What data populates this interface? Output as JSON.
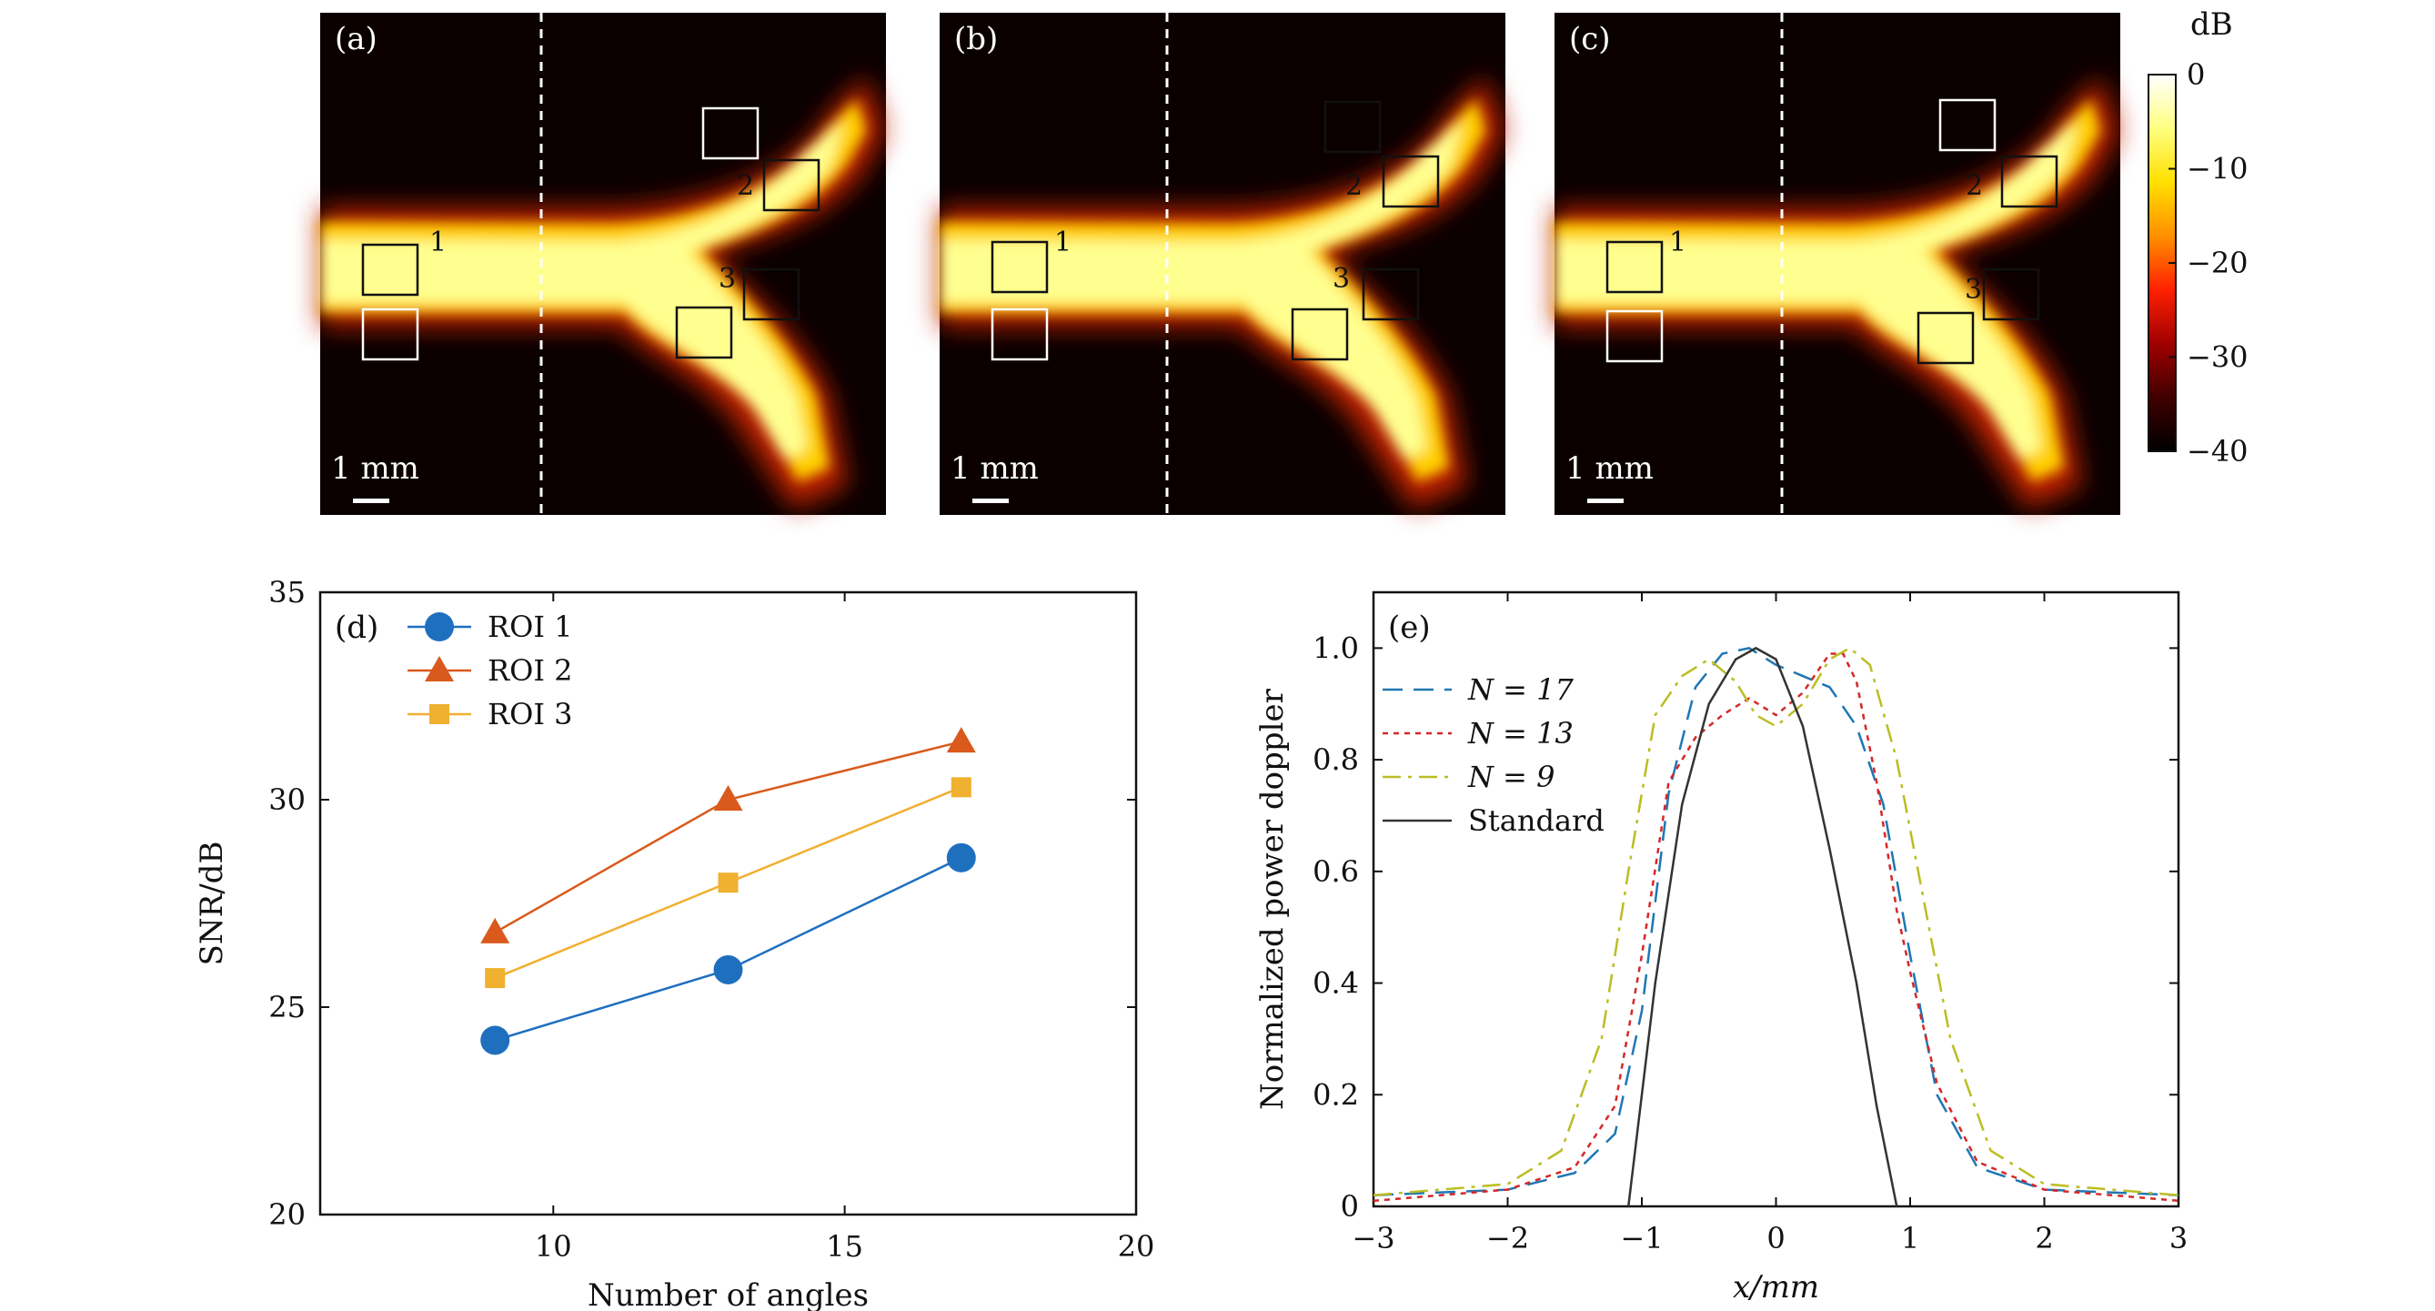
{
  "images": {
    "panels": [
      {
        "label": "(a)",
        "scale_label": "1 mm"
      },
      {
        "label": "(b)",
        "scale_label": "1 mm"
      },
      {
        "label": "(c)",
        "scale_label": "1 mm"
      }
    ],
    "roi_labels": [
      "1",
      "2",
      "3"
    ],
    "colorbar": {
      "unit": "dB",
      "tick_labels": [
        "0",
        "−10",
        "−20",
        "−30",
        "−40"
      ],
      "colors": [
        "#ffffff",
        "#ffff80",
        "#ffe000",
        "#ff9000",
        "#ff2000",
        "#a00000",
        "#400000",
        "#000000"
      ]
    }
  },
  "chart_data": [
    {
      "panel": "(d)",
      "type": "line",
      "xlabel": "Number of angles",
      "ylabel": "SNR/dB",
      "xlim": [
        6,
        20
      ],
      "ylim": [
        20,
        35
      ],
      "xticks": [
        10,
        15,
        20
      ],
      "xtick_labels": [
        "10",
        "15",
        "20"
      ],
      "yticks": [
        20,
        25,
        30,
        35
      ],
      "ytick_labels": [
        "20",
        "25",
        "30",
        "35"
      ],
      "legend_position": "top-left",
      "x": [
        9,
        13,
        17
      ],
      "series": [
        {
          "name": "ROI 1",
          "marker": "circle",
          "color": "#1f6fbf",
          "values": [
            24.2,
            25.9,
            28.6
          ]
        },
        {
          "name": "ROI 2",
          "marker": "triangle",
          "color": "#d95a1c",
          "values": [
            26.8,
            30.0,
            31.4
          ]
        },
        {
          "name": "ROI 3",
          "marker": "square",
          "color": "#f0b030",
          "values": [
            25.7,
            28.0,
            30.3
          ]
        }
      ]
    },
    {
      "panel": "(e)",
      "type": "line",
      "xlabel": "x/mm",
      "ylabel": "Normalized power doppler",
      "xlim": [
        -3,
        3
      ],
      "ylim": [
        0,
        1.1
      ],
      "xticks": [
        -3,
        -2,
        -1,
        0,
        1,
        2,
        3
      ],
      "xtick_labels": [
        "−3",
        "−2",
        "−1",
        "0",
        "1",
        "2",
        "3"
      ],
      "yticks": [
        0,
        0.2,
        0.4,
        0.6,
        0.8,
        1.0
      ],
      "ytick_labels": [
        "0",
        "0.2",
        "0.4",
        "0.6",
        "0.8",
        "1.0"
      ],
      "legend_position": "top-left",
      "series": [
        {
          "name": "N = 17",
          "style": "dashed",
          "color": "#1f77b4",
          "x": [
            -3,
            -2,
            -1.5,
            -1.2,
            -1.0,
            -0.8,
            -0.6,
            -0.4,
            -0.2,
            0,
            0.2,
            0.4,
            0.6,
            0.8,
            1.0,
            1.2,
            1.5,
            2,
            3
          ],
          "y": [
            0.02,
            0.03,
            0.06,
            0.13,
            0.35,
            0.74,
            0.93,
            0.99,
            1.0,
            0.97,
            0.95,
            0.93,
            0.86,
            0.72,
            0.45,
            0.2,
            0.07,
            0.03,
            0.02
          ]
        },
        {
          "name": "N = 13",
          "style": "dotted",
          "color": "#d62728",
          "x": [
            -3,
            -2,
            -1.5,
            -1.2,
            -1.0,
            -0.8,
            -0.6,
            -0.4,
            -0.2,
            0,
            0.2,
            0.4,
            0.5,
            0.6,
            0.75,
            0.9,
            1.0,
            1.2,
            1.5,
            2,
            3
          ],
          "y": [
            0.01,
            0.03,
            0.07,
            0.18,
            0.45,
            0.76,
            0.84,
            0.88,
            0.91,
            0.88,
            0.92,
            0.99,
            0.99,
            0.94,
            0.76,
            0.53,
            0.42,
            0.22,
            0.08,
            0.03,
            0.01
          ]
        },
        {
          "name": "N = 9",
          "style": "dashdot",
          "color": "#bcbd22",
          "x": [
            -3,
            -2,
            -1.6,
            -1.3,
            -1.1,
            -0.9,
            -0.7,
            -0.5,
            -0.3,
            -0.15,
            0,
            0.2,
            0.4,
            0.55,
            0.7,
            0.9,
            1.1,
            1.3,
            1.6,
            2,
            3
          ],
          "y": [
            0.02,
            0.04,
            0.1,
            0.3,
            0.6,
            0.88,
            0.95,
            0.98,
            0.94,
            0.88,
            0.86,
            0.9,
            0.98,
            1.0,
            0.97,
            0.8,
            0.55,
            0.3,
            0.1,
            0.04,
            0.02
          ]
        },
        {
          "name": "Standard",
          "style": "solid",
          "color": "#333333",
          "x": [
            -1.1,
            -0.9,
            -0.7,
            -0.5,
            -0.3,
            -0.15,
            0,
            0.2,
            0.4,
            0.6,
            0.75,
            0.9
          ],
          "y": [
            0.0,
            0.4,
            0.72,
            0.9,
            0.98,
            1.0,
            0.98,
            0.86,
            0.64,
            0.4,
            0.18,
            0.0
          ]
        }
      ]
    }
  ]
}
